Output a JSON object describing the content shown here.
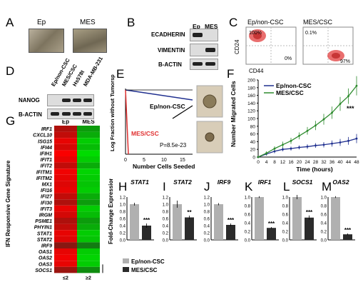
{
  "panel_letters": {
    "A": "A",
    "B": "B",
    "C": "C",
    "D": "D",
    "E": "E",
    "F": "F",
    "G": "G",
    "H": "H",
    "I": "I",
    "J": "J",
    "K": "K",
    "L": "L",
    "M": "M"
  },
  "panelA": {
    "ep": "Ep",
    "mes": "MES"
  },
  "panelB": {
    "header_ep": "Ep",
    "header_mes": "MES",
    "rows": [
      "ECADHERIN",
      "VIMENTIN",
      "B-ACTIN"
    ]
  },
  "panelC": {
    "left_title": "Ep/non-CSC",
    "right_title": "MES/CSC",
    "left_q1": "100%",
    "left_q4": "0%",
    "right_q1": "0.1%",
    "right_q4": "97%",
    "ylabel": "CD24",
    "xlabel": "CD44"
  },
  "panelD": {
    "columns": [
      "Ep/non-CSC",
      "MES/CSC",
      "Hs578t",
      "MDA-MB-231"
    ],
    "rows": [
      "NANOG",
      "B-ACTIN"
    ]
  },
  "panelE": {
    "ylabel": "Log Fraction without Tumorspheres",
    "xlabel": "Number Cells Seeded",
    "ep_label": "Ep/non-CSC",
    "mes_label": "MES/CSC",
    "pvalue": "P=8.5e-23",
    "xticks": [
      "0",
      "5",
      "10",
      "15"
    ]
  },
  "panelG": {
    "ylabel": "IFN Responsive Gene Signature",
    "col_ep": "Ep",
    "col_mes": "MES",
    "genes": [
      "IRF1",
      "CXCL10",
      "ISG15",
      "IFI44",
      "IFIH1",
      "IFIT1",
      "IFIT2",
      "IFITM1",
      "IFITM2",
      "MX1",
      "IFI16",
      "IFI27",
      "IFI30",
      "IFIT3",
      "IRGM",
      "PSME1",
      "PHYIN1",
      "STAT1",
      "STAT2",
      "IRF9",
      "OAS1",
      "OAS2",
      "OAS3",
      "SOCS1"
    ],
    "scale_low": "≤2",
    "scale_high": "≥2"
  },
  "legend": {
    "ep": "Ep/non-CSC",
    "mes": "MES/CSC"
  },
  "bars_ylabel": "Fold-Change Expression",
  "chart_data": [
    {
      "type": "line",
      "panel": "F",
      "xlabel": "Time (hours)",
      "ylabel": "Number Migrated Cells",
      "x": [
        0,
        4,
        8,
        12,
        16,
        20,
        24,
        28,
        32,
        36,
        40,
        44,
        48
      ],
      "xticks": [
        "0",
        "4",
        "8",
        "12",
        "16",
        "20",
        "24",
        "28",
        "32",
        "36",
        "40",
        "44",
        "48"
      ],
      "ylim": [
        0,
        200
      ],
      "yticks": [
        "0",
        "20",
        "40",
        "60",
        "80",
        "100",
        "120",
        "140",
        "160",
        "180",
        "200"
      ],
      "series": [
        {
          "name": "Ep/non-CSC",
          "color": "#1f2f8f",
          "values": [
            0,
            8,
            15,
            20,
            22,
            25,
            27,
            30,
            32,
            35,
            38,
            42,
            48
          ],
          "err": [
            2,
            4,
            5,
            5,
            5,
            5,
            6,
            6,
            7,
            8,
            9,
            10,
            12
          ]
        },
        {
          "name": "MES/CSC",
          "color": "#2e8b2e",
          "values": [
            0,
            10,
            22,
            32,
            42,
            55,
            68,
            82,
            98,
            115,
            138,
            158,
            185
          ],
          "err": [
            3,
            5,
            6,
            8,
            8,
            9,
            10,
            12,
            14,
            16,
            18,
            20,
            25
          ]
        }
      ],
      "annotation": "***"
    },
    {
      "type": "bar",
      "panel": "E",
      "title": "",
      "note": "limiting dilution"
    },
    {
      "type": "bar",
      "panel": "H",
      "title": "STAT1",
      "categories": [
        "Ep/non-CSC",
        "MES/CSC"
      ],
      "values": [
        1.0,
        0.4
      ],
      "err": [
        0.04,
        0.06
      ],
      "ylim": [
        0,
        1.2
      ],
      "yticks": [
        "0.0",
        "0.2",
        "0.4",
        "0.6",
        "0.8",
        "1.0",
        "1.2"
      ],
      "sig": "***"
    },
    {
      "type": "bar",
      "panel": "I",
      "title": "STAT2",
      "categories": [
        "Ep/non-CSC",
        "MES/CSC"
      ],
      "values": [
        1.0,
        0.63
      ],
      "err": [
        0.1,
        0.05
      ],
      "ylim": [
        0,
        1.2
      ],
      "yticks": [
        "0.0",
        "0.2",
        "0.4",
        "0.6",
        "0.8",
        "1.0",
        "1.2"
      ],
      "sig": "**"
    },
    {
      "type": "bar",
      "panel": "J",
      "title": "IRF9",
      "categories": [
        "Ep/non-CSC",
        "MES/CSC"
      ],
      "values": [
        1.0,
        0.42
      ],
      "err": [
        0.03,
        0.04
      ],
      "ylim": [
        0,
        1.2
      ],
      "yticks": [
        "0.0",
        "0.2",
        "0.4",
        "0.6",
        "0.8",
        "1.0",
        "1.2"
      ],
      "sig": "***"
    },
    {
      "type": "bar",
      "panel": "K",
      "title": "IRF1",
      "categories": [
        "Ep/non-CSC",
        "MES/CSC"
      ],
      "values": [
        1.0,
        0.28
      ],
      "err": [
        0.02,
        0.02
      ],
      "ylim": [
        0,
        1.0
      ],
      "yticks": [
        "0.0",
        "0.2",
        "0.4",
        "0.6",
        "0.8",
        "1.0"
      ],
      "sig": "***"
    },
    {
      "type": "bar",
      "panel": "L",
      "title": "SOCS1",
      "categories": [
        "Ep/non-CSC",
        "MES/CSC"
      ],
      "values": [
        1.0,
        0.52
      ],
      "err": [
        0.05,
        0.05
      ],
      "ylim": [
        0,
        1.0
      ],
      "yticks": [
        "0.0",
        "0.2",
        "0.4",
        "0.6",
        "0.8",
        "1.0"
      ],
      "sig": "***"
    },
    {
      "type": "bar",
      "panel": "M",
      "title": "OAS2",
      "categories": [
        "Ep/non-CSC",
        "MES/CSC"
      ],
      "values": [
        1.0,
        0.13
      ],
      "err": [
        0.02,
        0.02
      ],
      "ylim": [
        0,
        1.0
      ],
      "yticks": [
        "0.0",
        "0.2",
        "0.4",
        "0.6",
        "0.8",
        "1.0"
      ],
      "sig": "***"
    }
  ],
  "heatmap": {
    "ep": [
      0.6,
      0.7,
      0.9,
      0.8,
      1.0,
      0.9,
      0.7,
      0.95,
      0.9,
      0.85,
      0.9,
      0.7,
      0.6,
      0.9,
      0.8,
      0.6,
      0.7,
      0.9,
      0.85,
      0.4,
      0.9,
      0.95,
      0.9,
      0.5
    ],
    "mes": [
      -0.6,
      -0.7,
      -0.9,
      -0.8,
      -1.0,
      -0.9,
      -0.7,
      -0.95,
      -0.9,
      -0.85,
      -0.9,
      -0.7,
      -0.6,
      -0.9,
      -0.8,
      -0.6,
      -0.7,
      -0.9,
      -0.85,
      -0.4,
      -0.9,
      -0.95,
      -0.9,
      -0.5
    ]
  },
  "colors": {
    "ep_bar": "#b0b0b0",
    "mes_bar": "#2b2b2b",
    "ep_line": "#1f2f8f",
    "mes_line": "#2e8b2e",
    "mes_red": "#e03030"
  }
}
